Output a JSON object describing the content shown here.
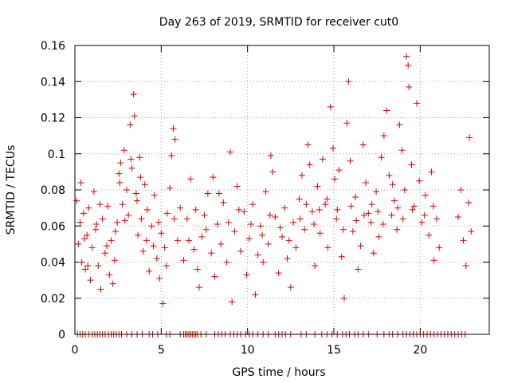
{
  "chart_data": {
    "type": "scatter",
    "title": "Day 263 of 2019, SRMTID for receiver cut0",
    "xlabel": "GPS time / hours",
    "ylabel": "SRMTID / TECUs",
    "xlim": [
      0,
      24
    ],
    "ylim": [
      0,
      0.16
    ],
    "x_ticks": [
      0,
      5,
      10,
      15,
      20
    ],
    "x_tick_labels": [
      "0",
      "5",
      "10",
      "15",
      "20"
    ],
    "y_ticks": [
      0,
      0.02,
      0.04,
      0.06,
      0.08,
      0.1,
      0.12,
      0.14,
      0.16
    ],
    "y_tick_labels": [
      "0",
      "0.02",
      "0.04",
      "0.06",
      "0.08",
      "0.1",
      "0.12",
      "0.14",
      "0.16"
    ],
    "grid": true,
    "marker": "plus",
    "color": "#e00000",
    "series": [
      {
        "points": [
          [
            0.1,
            0.074
          ],
          [
            0.2,
            0.05
          ],
          [
            0.3,
            0.062
          ],
          [
            0.35,
            0.084
          ],
          [
            0.4,
            0.04
          ],
          [
            0.5,
            0.067
          ],
          [
            0.6,
            0.036
          ],
          [
            0.7,
            0.055
          ],
          [
            0.8,
            0.07
          ],
          [
            0.9,
            0.03
          ],
          [
            1.0,
            0.048
          ],
          [
            1.1,
            0.079
          ],
          [
            1.2,
            0.058
          ],
          [
            1.35,
            0.038
          ],
          [
            1.5,
            0.025
          ],
          [
            1.6,
            0.064
          ],
          [
            1.75,
            0.045
          ],
          [
            1.9,
            0.071
          ],
          [
            2.0,
            0.033
          ],
          [
            2.1,
            0.052
          ],
          [
            2.2,
            0.028
          ],
          [
            2.3,
            0.041
          ],
          [
            2.45,
            0.062
          ],
          [
            2.55,
            0.089
          ],
          [
            2.65,
            0.095
          ],
          [
            2.75,
            0.072
          ],
          [
            2.85,
            0.102
          ],
          [
            3.0,
            0.08
          ],
          [
            3.1,
            0.066
          ],
          [
            3.2,
            0.116
          ],
          [
            3.3,
            0.092
          ],
          [
            3.4,
            0.133
          ],
          [
            3.45,
            0.121
          ],
          [
            3.55,
            0.078
          ],
          [
            3.65,
            0.055
          ],
          [
            3.75,
            0.098
          ],
          [
            3.85,
            0.064
          ],
          [
            3.95,
            0.046
          ],
          [
            4.05,
            0.083
          ],
          [
            4.15,
            0.052
          ],
          [
            4.3,
            0.035
          ],
          [
            4.45,
            0.06
          ],
          [
            4.6,
            0.077
          ],
          [
            4.75,
            0.042
          ],
          [
            4.9,
            0.031
          ],
          [
            5.0,
            0.056
          ],
          [
            5.1,
            0.017
          ],
          [
            5.2,
            0.048
          ],
          [
            5.35,
            0.067
          ],
          [
            5.5,
            0.081
          ],
          [
            5.6,
            0.099
          ],
          [
            5.7,
            0.114
          ],
          [
            5.8,
            0.108
          ],
          [
            5.95,
            0.052
          ],
          [
            6.1,
            0.07
          ],
          [
            6.3,
            0.041
          ],
          [
            6.5,
            0.064
          ],
          [
            6.7,
            0.086
          ],
          [
            6.9,
            0.047
          ],
          [
            7.1,
            0.036
          ],
          [
            7.2,
            0.026
          ],
          [
            7.35,
            0.054
          ],
          [
            7.5,
            0.066
          ],
          [
            7.7,
            0.078
          ],
          [
            7.9,
            0.045
          ],
          [
            8.0,
            0.087
          ],
          [
            8.1,
            0.032
          ],
          [
            8.25,
            0.061
          ],
          [
            8.45,
            0.05
          ],
          [
            8.6,
            0.073
          ],
          [
            8.8,
            0.04
          ],
          [
            9.0,
            0.101
          ],
          [
            9.1,
            0.018
          ],
          [
            9.25,
            0.057
          ],
          [
            9.4,
            0.082
          ],
          [
            9.6,
            0.046
          ],
          [
            9.8,
            0.068
          ],
          [
            9.95,
            0.033
          ],
          [
            10.1,
            0.053
          ],
          [
            10.3,
            0.072
          ],
          [
            10.45,
            0.022
          ],
          [
            10.6,
            0.044
          ],
          [
            10.75,
            0.06
          ],
          [
            10.9,
            0.04
          ],
          [
            11.05,
            0.079
          ],
          [
            11.2,
            0.05
          ],
          [
            11.35,
            0.099
          ],
          [
            11.45,
            0.09
          ],
          [
            11.6,
            0.065
          ],
          [
            11.8,
            0.034
          ],
          [
            12.0,
            0.054
          ],
          [
            12.15,
            0.07
          ],
          [
            12.3,
            0.042
          ],
          [
            12.5,
            0.026
          ],
          [
            12.65,
            0.062
          ],
          [
            12.8,
            0.048
          ],
          [
            13.0,
            0.075
          ],
          [
            13.15,
            0.088
          ],
          [
            13.3,
            0.058
          ],
          [
            13.5,
            0.105
          ],
          [
            13.6,
            0.094
          ],
          [
            13.75,
            0.068
          ],
          [
            13.9,
            0.038
          ],
          [
            14.05,
            0.082
          ],
          [
            14.2,
            0.056
          ],
          [
            14.35,
            0.097
          ],
          [
            14.5,
            0.072
          ],
          [
            14.65,
            0.048
          ],
          [
            14.8,
            0.126
          ],
          [
            14.95,
            0.103
          ],
          [
            15.05,
            0.086
          ],
          [
            15.15,
            0.064
          ],
          [
            15.3,
            0.091
          ],
          [
            15.45,
            0.043
          ],
          [
            15.6,
            0.02
          ],
          [
            15.75,
            0.117
          ],
          [
            15.85,
            0.14
          ],
          [
            15.95,
            0.096
          ],
          [
            16.1,
            0.057
          ],
          [
            16.25,
            0.076
          ],
          [
            16.4,
            0.036
          ],
          [
            16.55,
            0.049
          ],
          [
            16.7,
            0.105
          ],
          [
            16.85,
            0.084
          ],
          [
            17.0,
            0.067
          ],
          [
            17.15,
            0.062
          ],
          [
            17.3,
            0.045
          ],
          [
            17.45,
            0.079
          ],
          [
            17.6,
            0.054
          ],
          [
            17.75,
            0.098
          ],
          [
            17.9,
            0.11
          ],
          [
            18.05,
            0.124
          ],
          [
            18.2,
            0.088
          ],
          [
            18.35,
            0.066
          ],
          [
            18.5,
            0.074
          ],
          [
            18.65,
            0.058
          ],
          [
            18.8,
            0.116
          ],
          [
            18.95,
            0.102
          ],
          [
            19.1,
            0.08
          ],
          [
            19.2,
            0.154
          ],
          [
            19.3,
            0.149
          ],
          [
            19.35,
            0.137
          ],
          [
            19.5,
            0.094
          ],
          [
            19.65,
            0.071
          ],
          [
            19.8,
            0.128
          ],
          [
            19.95,
            0.085
          ],
          [
            20.1,
            0.062
          ],
          [
            20.3,
            0.077
          ],
          [
            20.5,
            0.055
          ],
          [
            20.65,
            0.09
          ],
          [
            20.8,
            0.041
          ],
          [
            20.95,
            0.064
          ],
          [
            21.1,
            0.048
          ],
          [
            22.2,
            0.065
          ],
          [
            22.35,
            0.08
          ],
          [
            22.5,
            0.052
          ],
          [
            22.65,
            0.038
          ],
          [
            22.8,
            0.073
          ],
          [
            22.85,
            0.109
          ],
          [
            22.95,
            0.057
          ],
          [
            0.55,
            0.053
          ],
          [
            0.75,
            0.038
          ],
          [
            1.25,
            0.061
          ],
          [
            1.45,
            0.072
          ],
          [
            1.85,
            0.049
          ],
          [
            2.35,
            0.057
          ],
          [
            2.6,
            0.084
          ],
          [
            2.9,
            0.063
          ],
          [
            3.25,
            0.097
          ],
          [
            3.6,
            0.074
          ],
          [
            3.8,
            0.087
          ],
          [
            4.2,
            0.069
          ],
          [
            4.55,
            0.049
          ],
          [
            4.85,
            0.062
          ],
          [
            5.3,
            0.038
          ],
          [
            5.75,
            0.064
          ],
          [
            6.6,
            0.052
          ],
          [
            7.0,
            0.069
          ],
          [
            7.6,
            0.058
          ],
          [
            8.35,
            0.078
          ],
          [
            8.9,
            0.062
          ],
          [
            9.5,
            0.069
          ],
          [
            10.2,
            0.061
          ],
          [
            10.85,
            0.055
          ],
          [
            11.3,
            0.066
          ],
          [
            11.9,
            0.059
          ],
          [
            12.4,
            0.052
          ],
          [
            13.05,
            0.064
          ],
          [
            13.4,
            0.072
          ],
          [
            13.85,
            0.061
          ],
          [
            14.15,
            0.069
          ],
          [
            14.6,
            0.075
          ],
          [
            15.2,
            0.069
          ],
          [
            15.55,
            0.058
          ],
          [
            16.0,
            0.071
          ],
          [
            16.3,
            0.063
          ],
          [
            16.75,
            0.066
          ],
          [
            17.2,
            0.072
          ],
          [
            17.55,
            0.068
          ],
          [
            17.85,
            0.061
          ],
          [
            18.4,
            0.083
          ],
          [
            18.7,
            0.07
          ],
          [
            19.0,
            0.064
          ],
          [
            19.55,
            0.069
          ],
          [
            20.25,
            0.066
          ],
          [
            20.75,
            0.071
          ]
        ]
      }
    ],
    "baseline_points_x": [
      0.15,
      0.3,
      0.45,
      0.6,
      0.8,
      1.0,
      1.15,
      1.3,
      1.45,
      1.6,
      1.75,
      1.95,
      2.1,
      2.25,
      2.4,
      2.55,
      2.7,
      3.0,
      3.3,
      3.6,
      3.9,
      4.3,
      4.5,
      4.8,
      5.3,
      5.5,
      6.1,
      6.3,
      6.4,
      6.5,
      6.6,
      6.7,
      6.8,
      6.9,
      7.0,
      7.1,
      7.3,
      7.6,
      8.1,
      8.3,
      8.5,
      8.7,
      9.0,
      9.2,
      9.4,
      9.6,
      9.9,
      10.1,
      10.3,
      10.6,
      10.9,
      11.2,
      11.6,
      11.8,
      12.0,
      12.2,
      12.5,
      13.1,
      13.4,
      13.9,
      14.3,
      14.6,
      14.9,
      15.2,
      15.5,
      15.7,
      15.9,
      16.2,
      16.4,
      16.7,
      17.0,
      17.5,
      17.9,
      18.2,
      18.4,
      18.7,
      19.0,
      19.2,
      19.4,
      19.6,
      19.8,
      20.0,
      20.2,
      20.4,
      20.6,
      20.8,
      21.0,
      21.2,
      21.4,
      21.6,
      21.8,
      22.0,
      22.2,
      22.4,
      22.6
    ]
  }
}
